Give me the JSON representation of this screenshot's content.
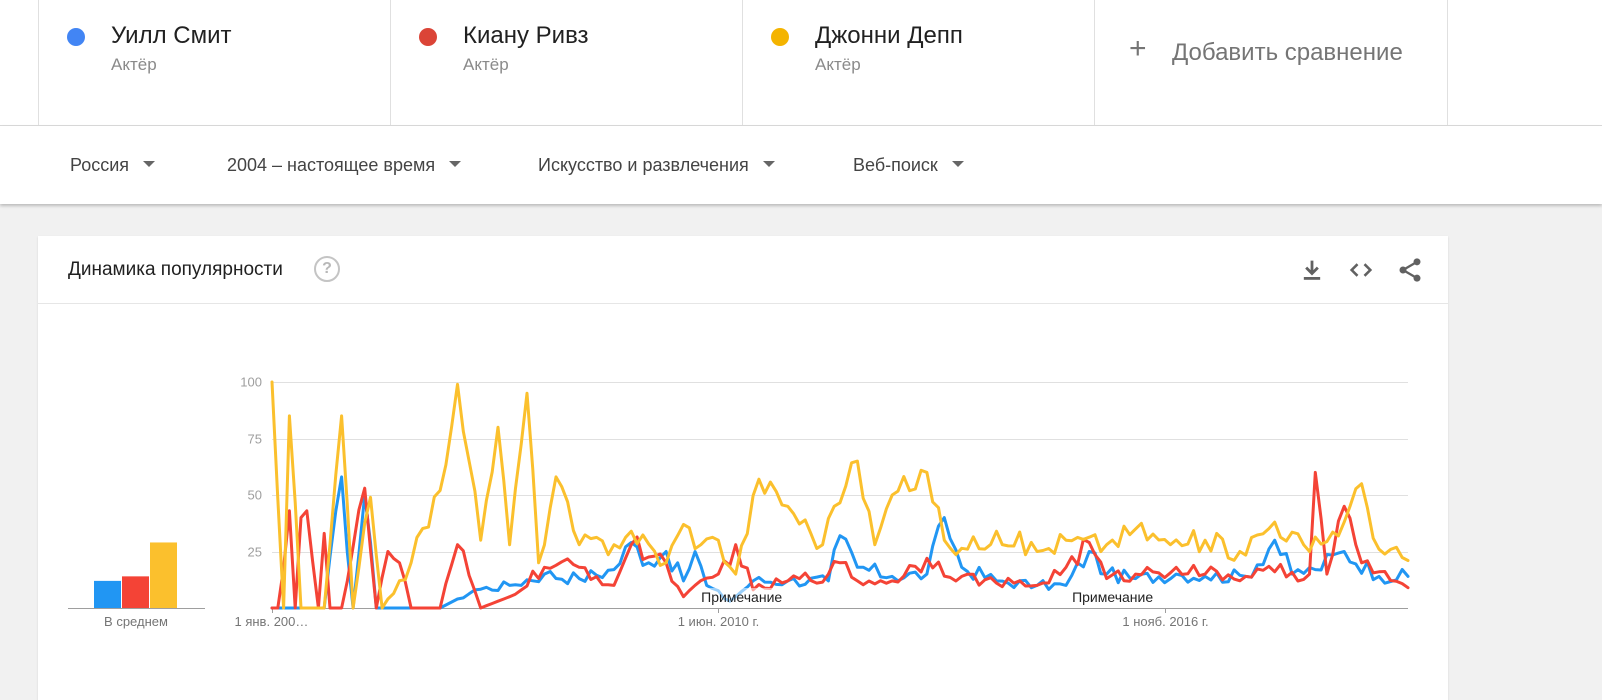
{
  "compare": {
    "terms": [
      {
        "name": "Уилл Смит",
        "type": "Актёр",
        "color": "#4285f4"
      },
      {
        "name": "Киану Ривз",
        "type": "Актёр",
        "color": "#db4437"
      },
      {
        "name": "Джонни Депп",
        "type": "Актёр",
        "color": "#f4b400"
      }
    ],
    "add_label": "Добавить сравнение"
  },
  "filters": {
    "region": "Россия",
    "period": "2004 – настоящее время",
    "category": "Искусство и развлечения",
    "search_type": "Веб-поиск"
  },
  "card": {
    "title": "Динамика популярности",
    "help_icon": "help-circle-icon",
    "icons": [
      "download-icon",
      "embed-code-icon",
      "share-icon"
    ]
  },
  "chart_data": [
    {
      "type": "bar",
      "xlabel": "В среднем",
      "series": [
        {
          "name": "Уилл Смит",
          "value": 12,
          "color": "#2196f3"
        },
        {
          "name": "Киану Ривз",
          "value": 14,
          "color": "#f44336"
        },
        {
          "name": "Джонни Депп",
          "value": 29,
          "color": "#fbc02d"
        }
      ],
      "ylim": [
        0,
        100
      ]
    },
    {
      "type": "line",
      "ylim": [
        0,
        100
      ],
      "yticks": [
        0,
        25,
        50,
        75,
        100
      ],
      "ytick_labels": [
        "",
        "25",
        "50",
        "75",
        "100"
      ],
      "xdomain": [
        "2004-01",
        "2020-05"
      ],
      "xticks": [
        {
          "date": "2004-01",
          "label": "1 янв. 200…"
        },
        {
          "date": "2010-06",
          "label": "1 июн. 2010 г."
        },
        {
          "date": "2016-11",
          "label": "1 нояб. 2016 г."
        }
      ],
      "annotations": [
        {
          "date": "2010-09",
          "label": "Примечание"
        },
        {
          "date": "2016-01",
          "label": "Примечание"
        }
      ],
      "grid": true,
      "legend": "none",
      "series": [
        {
          "name": "Уилл Смит",
          "color": "#2196f3",
          "keypoints": [
            [
              "2004-01",
              0
            ],
            [
              "2004-10",
              0
            ],
            [
              "2005-01",
              58
            ],
            [
              "2005-03",
              0
            ],
            [
              "2005-05",
              50
            ],
            [
              "2005-07",
              0
            ],
            [
              "2006-06",
              0
            ],
            [
              "2006-12",
              8
            ],
            [
              "2007-06",
              10
            ],
            [
              "2007-12",
              15
            ],
            [
              "2008-06",
              13
            ],
            [
              "2008-12",
              17
            ],
            [
              "2009-03",
              29
            ],
            [
              "2009-06",
              20
            ],
            [
              "2009-09",
              25
            ],
            [
              "2009-12",
              12
            ],
            [
              "2010-02",
              25
            ],
            [
              "2010-04",
              10
            ],
            [
              "2010-08",
              3
            ],
            [
              "2010-12",
              12
            ],
            [
              "2011-06",
              12
            ],
            [
              "2012-01",
              12
            ],
            [
              "2012-03",
              32
            ],
            [
              "2012-06",
              18
            ],
            [
              "2012-12",
              14
            ],
            [
              "2013-06",
              15
            ],
            [
              "2013-09",
              40
            ],
            [
              "2013-12",
              18
            ],
            [
              "2014-06",
              12
            ],
            [
              "2015-01",
              10
            ],
            [
              "2015-06",
              10
            ],
            [
              "2015-10",
              25
            ],
            [
              "2016-01",
              15
            ],
            [
              "2016-06",
              13
            ],
            [
              "2017-01",
              15
            ],
            [
              "2017-06",
              14
            ],
            [
              "2018-01",
              14
            ],
            [
              "2018-06",
              30
            ],
            [
              "2018-09",
              15
            ],
            [
              "2019-01",
              17
            ],
            [
              "2019-06",
              25
            ],
            [
              "2019-12",
              14
            ],
            [
              "2020-05",
              14
            ]
          ]
        },
        {
          "name": "Киану Ривз",
          "color": "#f44336",
          "keypoints": [
            [
              "2004-01",
              0
            ],
            [
              "2004-02",
              0
            ],
            [
              "2004-04",
              43
            ],
            [
              "2004-05",
              0
            ],
            [
              "2004-06",
              40
            ],
            [
              "2004-07",
              43
            ],
            [
              "2004-09",
              0
            ],
            [
              "2004-10",
              33
            ],
            [
              "2004-11",
              0
            ],
            [
              "2005-01",
              0
            ],
            [
              "2005-05",
              53
            ],
            [
              "2005-07",
              0
            ],
            [
              "2005-09",
              25
            ],
            [
              "2005-11",
              20
            ],
            [
              "2006-01",
              0
            ],
            [
              "2006-06",
              0
            ],
            [
              "2006-09",
              28
            ],
            [
              "2007-01",
              0
            ],
            [
              "2007-06",
              5
            ],
            [
              "2007-12",
              18
            ],
            [
              "2008-06",
              18
            ],
            [
              "2008-12",
              10
            ],
            [
              "2009-03",
              28
            ],
            [
              "2009-09",
              20
            ],
            [
              "2009-12",
              5
            ],
            [
              "2010-06",
              15
            ],
            [
              "2010-09",
              28
            ],
            [
              "2010-12",
              8
            ],
            [
              "2011-06",
              12
            ],
            [
              "2012-01",
              15
            ],
            [
              "2012-03",
              20
            ],
            [
              "2012-06",
              12
            ],
            [
              "2012-12",
              12
            ],
            [
              "2013-06",
              22
            ],
            [
              "2013-12",
              14
            ],
            [
              "2014-06",
              11
            ],
            [
              "2015-01",
              10
            ],
            [
              "2015-06",
              18
            ],
            [
              "2015-10",
              29
            ],
            [
              "2016-01",
              13
            ],
            [
              "2016-06",
              15
            ],
            [
              "2017-01",
              18
            ],
            [
              "2017-06",
              15
            ],
            [
              "2018-01",
              14
            ],
            [
              "2018-06",
              16
            ],
            [
              "2018-12",
              15
            ],
            [
              "2019-01",
              60
            ],
            [
              "2019-03",
              15
            ],
            [
              "2019-06",
              45
            ],
            [
              "2019-09",
              20
            ],
            [
              "2019-12",
              16
            ],
            [
              "2020-05",
              9
            ]
          ]
        },
        {
          "name": "Джонни Депп",
          "color": "#fbc02d",
          "keypoints": [
            [
              "2004-01",
              100
            ],
            [
              "2004-03",
              0
            ],
            [
              "2004-04",
              85
            ],
            [
              "2004-06",
              0
            ],
            [
              "2004-10",
              0
            ],
            [
              "2005-01",
              85
            ],
            [
              "2005-03",
              0
            ],
            [
              "2005-06",
              49
            ],
            [
              "2005-08",
              0
            ],
            [
              "2006-01",
              20
            ],
            [
              "2006-06",
              52
            ],
            [
              "2006-09",
              99
            ],
            [
              "2006-11",
              65
            ],
            [
              "2007-01",
              30
            ],
            [
              "2007-04",
              80
            ],
            [
              "2007-06",
              28
            ],
            [
              "2007-09",
              95
            ],
            [
              "2007-11",
              20
            ],
            [
              "2008-02",
              58
            ],
            [
              "2008-06",
              28
            ],
            [
              "2008-12",
              28
            ],
            [
              "2009-03",
              34
            ],
            [
              "2009-09",
              20
            ],
            [
              "2009-12",
              37
            ],
            [
              "2010-03",
              28
            ],
            [
              "2010-06",
              30
            ],
            [
              "2010-09",
              15
            ],
            [
              "2011-01",
              57
            ],
            [
              "2011-06",
              45
            ],
            [
              "2011-12",
              28
            ],
            [
              "2012-02",
              45
            ],
            [
              "2012-06",
              65
            ],
            [
              "2012-09",
              28
            ],
            [
              "2012-12",
              50
            ],
            [
              "2013-06",
              60
            ],
            [
              "2013-09",
              30
            ],
            [
              "2014-01",
              26
            ],
            [
              "2014-06",
              34
            ],
            [
              "2015-01",
              25
            ],
            [
              "2015-06",
              30
            ],
            [
              "2016-01",
              28
            ],
            [
              "2016-06",
              35
            ],
            [
              "2016-12",
              28
            ],
            [
              "2017-06",
              30
            ],
            [
              "2017-12",
              25
            ],
            [
              "2018-06",
              38
            ],
            [
              "2018-12",
              25
            ],
            [
              "2019-06",
              38
            ],
            [
              "2019-09",
              55
            ],
            [
              "2019-12",
              26
            ],
            [
              "2020-05",
              21
            ]
          ]
        }
      ]
    }
  ]
}
